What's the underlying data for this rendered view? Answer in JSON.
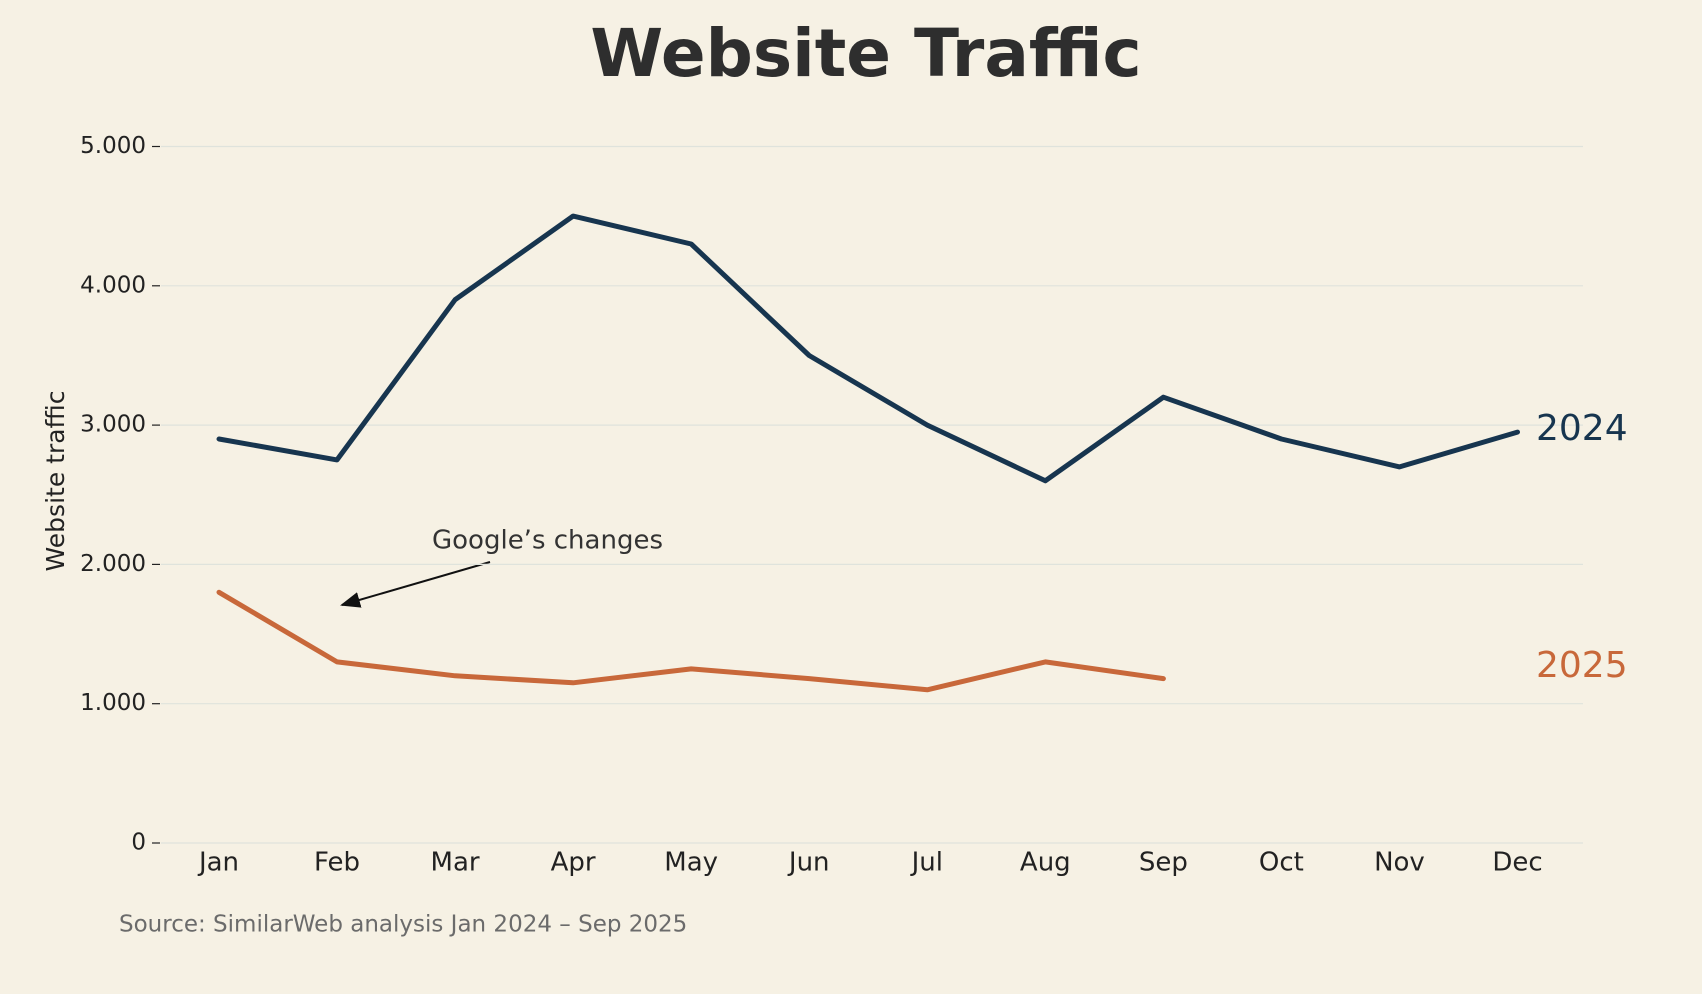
{
  "chart_data": {
    "type": "line",
    "title": "Website Traffic",
    "ylabel": "Website traffic",
    "source": "Source: SimilarWeb analysis Jan 2024 – Sep 2025",
    "annotation": "Google’s changes",
    "categories": [
      "Jan",
      "Feb",
      "Mar",
      "Apr",
      "May",
      "Jun",
      "Jul",
      "Aug",
      "Sep",
      "Oct",
      "Nov",
      "Dec"
    ],
    "series": [
      {
        "name": "2024",
        "color": "#17354f",
        "values": [
          2900,
          2750,
          3900,
          4500,
          4300,
          3500,
          3000,
          2600,
          3200,
          2900,
          2700,
          2950
        ]
      },
      {
        "name": "2025",
        "color": "#c8683a",
        "values": [
          1800,
          1300,
          1200,
          1150,
          1250,
          1180,
          1100,
          1300,
          1180,
          null,
          null,
          null
        ]
      }
    ],
    "ylim": [
      0,
      5000
    ],
    "yticks": [
      0,
      {
        "value": 1000,
        "label": "1.000"
      },
      {
        "value": 2000,
        "label": "2.000"
      },
      {
        "value": 3000,
        "label": "3.000"
      },
      {
        "value": 4000,
        "label": "4.000"
      },
      {
        "value": 5000,
        "label": "5.000"
      }
    ],
    "grid": true
  }
}
